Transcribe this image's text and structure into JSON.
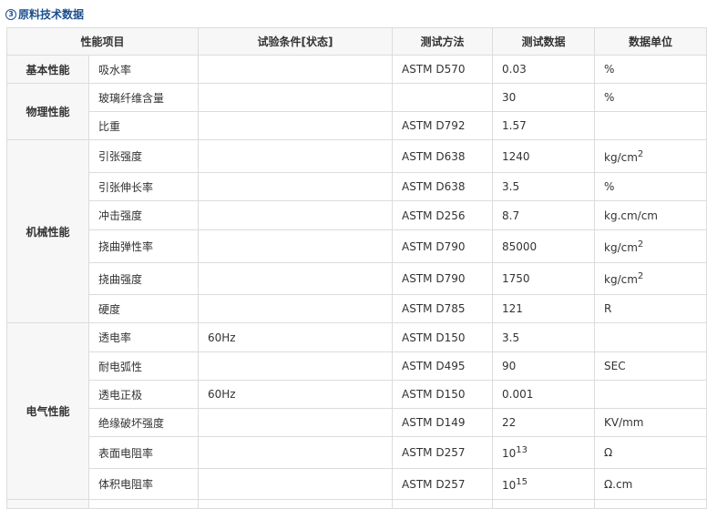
{
  "title": "原料技术数据",
  "title_icon": "circled-3-icon",
  "headers": [
    "性能项目",
    "试验条件[状态]",
    "测试方法",
    "测试数据",
    "数据单位"
  ],
  "groups": [
    {
      "name": "基本性能",
      "rows": [
        {
          "item": "吸水率",
          "cond": "",
          "method": "ASTM D570",
          "value": "0.03",
          "unit": "%"
        }
      ]
    },
    {
      "name": "物理性能",
      "rows": [
        {
          "item": "玻璃纤维含量",
          "cond": "",
          "method": "",
          "value": "30",
          "unit": "%"
        },
        {
          "item": "比重",
          "cond": "",
          "method": "ASTM D792",
          "value": "1.57",
          "unit": ""
        }
      ]
    },
    {
      "name": "机械性能",
      "rows": [
        {
          "item": "引张强度",
          "cond": "",
          "method": "ASTM D638",
          "value": "1240",
          "unit": "kg/cm",
          "unit_sup": "2"
        },
        {
          "item": "引张伸长率",
          "cond": "",
          "method": "ASTM D638",
          "value": "3.5",
          "unit": "%"
        },
        {
          "item": "冲击强度",
          "cond": "",
          "method": "ASTM D256",
          "value": "8.7",
          "unit": "kg.cm/cm"
        },
        {
          "item": "挠曲弹性率",
          "cond": "",
          "method": "ASTM D790",
          "value": "85000",
          "unit": "kg/cm",
          "unit_sup": "2"
        },
        {
          "item": "挠曲强度",
          "cond": "",
          "method": "ASTM D790",
          "value": "1750",
          "unit": "kg/cm",
          "unit_sup": "2"
        },
        {
          "item": "硬度",
          "cond": "",
          "method": "ASTM D785",
          "value": "121",
          "unit": "R"
        }
      ]
    },
    {
      "name": "电气性能",
      "rows": [
        {
          "item": "透电率",
          "cond": "60Hz",
          "method": "ASTM D150",
          "value": "3.5",
          "unit": ""
        },
        {
          "item": "耐电弧性",
          "cond": "",
          "method": "ASTM D495",
          "value": "90",
          "unit": "SEC"
        },
        {
          "item": "透电正极",
          "cond": "60Hz",
          "method": "ASTM D150",
          "value": "0.001",
          "unit": ""
        },
        {
          "item": "绝缘破坏强度",
          "cond": "",
          "method": "ASTM D149",
          "value": "22",
          "unit": "KV/mm"
        },
        {
          "item": "表面电阻率",
          "cond": "",
          "method": "ASTM D257",
          "value": "10",
          "value_sup": "13",
          "unit": "Ω"
        },
        {
          "item": "体积电阻率",
          "cond": "",
          "method": "ASTM D257",
          "value": "10",
          "value_sup": "15",
          "unit": "Ω.cm"
        }
      ]
    }
  ]
}
